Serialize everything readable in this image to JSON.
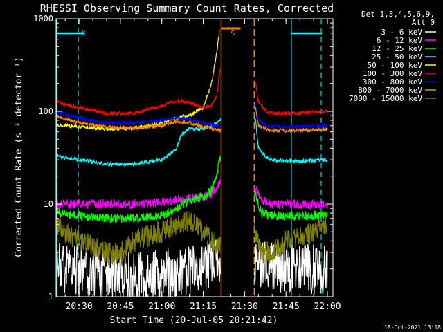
{
  "chart_data": {
    "type": "line",
    "title": "RHESSI Observing Summary Count Rates, Corrected",
    "xlabel": "Start Time (20-Jul-05 20:21:42)",
    "ylabel": "Corrected Count Rate (s⁻¹ detector⁻¹)",
    "y_scale": "log",
    "ylim": [
      1,
      1000
    ],
    "y_ticks": [
      "1",
      "10",
      "100",
      "1000"
    ],
    "xlim": [
      "20:21:42",
      "22:02:00"
    ],
    "x_ticks": [
      "20:30",
      "20:45",
      "21:00",
      "21:15",
      "21:30",
      "21:45",
      "22:00"
    ],
    "legend_header": [
      "Det 1,3,4,5,6,9,",
      "Att 0"
    ],
    "legend_position": "top-right, outside plot",
    "footer_timestamp": "18-Oct-2021 13:18",
    "markers": [
      {
        "label": "N",
        "time": "20:29:45",
        "color": "#00ffff",
        "style": "dashed"
      },
      {
        "label": "S",
        "time": "21:24:00",
        "color": "#ff8800",
        "style": "solid"
      }
    ],
    "data_gaps": [
      {
        "from": "21:21:30",
        "to": "21:33:30"
      }
    ],
    "series": [
      {
        "name": "3 - 6 keV",
        "color": "#ffffff",
        "x": [
          "20:22",
          "20:30",
          "20:40",
          "20:50",
          "21:00",
          "21:10",
          "21:15",
          "21:20",
          "21:34",
          "21:40",
          "21:50",
          "22:00"
        ],
        "y": [
          2,
          2,
          1.8,
          1.6,
          1.7,
          1.9,
          2,
          2.5,
          2.5,
          2,
          2,
          2
        ]
      },
      {
        "name": "6 - 12 keV",
        "color": "#ff00ff",
        "x": [
          "20:22",
          "20:30",
          "20:40",
          "20:50",
          "21:00",
          "21:05",
          "21:10",
          "21:15",
          "21:18",
          "21:20",
          "21:21",
          "21:34",
          "21:36",
          "21:40",
          "21:50",
          "22:00"
        ],
        "y": [
          10,
          10,
          10,
          10,
          10.5,
          11,
          11.5,
          12,
          13,
          15,
          18,
          15,
          11,
          10,
          10,
          10
        ]
      },
      {
        "name": "12 - 25 keV",
        "color": "#00ff00",
        "x": [
          "20:22",
          "20:30",
          "20:40",
          "20:50",
          "21:00",
          "21:05",
          "21:10",
          "21:15",
          "21:18",
          "21:20",
          "21:21",
          "21:34",
          "21:36",
          "21:40",
          "21:50",
          "22:00"
        ],
        "y": [
          8,
          7.5,
          7,
          7,
          7.5,
          9,
          11,
          12,
          14,
          20,
          32,
          13,
          8,
          7.5,
          7.5,
          7.5
        ]
      },
      {
        "name": "25 - 50 keV",
        "color": "#00ffff",
        "x": [
          "20:22",
          "20:30",
          "20:40",
          "20:50",
          "21:00",
          "21:05",
          "21:07",
          "21:10",
          "21:15",
          "21:18",
          "21:20",
          "21:21",
          "21:34",
          "21:35",
          "21:38",
          "21:40",
          "21:50",
          "22:00"
        ],
        "y": [
          33,
          30,
          27,
          27,
          30,
          38,
          55,
          65,
          65,
          70,
          75,
          80,
          80,
          40,
          32,
          30,
          29,
          30
        ]
      },
      {
        "name": "50 - 100 keV",
        "color": "#ffff00",
        "x": [
          "20:22",
          "20:30",
          "20:40",
          "20:50",
          "21:00",
          "21:05",
          "21:10",
          "21:15",
          "21:18",
          "21:20",
          "21:21"
        ],
        "y": [
          72,
          68,
          65,
          66,
          75,
          85,
          90,
          110,
          200,
          450,
          800
        ]
      },
      {
        "name": "100 - 300 keV",
        "color": "#ff0000",
        "x": [
          "20:22",
          "20:30",
          "20:40",
          "20:50",
          "21:00",
          "21:05",
          "21:10",
          "21:15",
          "21:18",
          "21:20",
          "21:21",
          "21:34",
          "21:35",
          "21:38",
          "21:40",
          "21:50",
          "22:00"
        ],
        "y": [
          125,
          110,
          95,
          95,
          115,
          130,
          125,
          110,
          115,
          150,
          280,
          200,
          125,
          100,
          95,
          95,
          100
        ]
      },
      {
        "name": "300 - 800 keV",
        "color": "#0000ff",
        "x": [
          "20:22",
          "20:30",
          "20:40",
          "20:50",
          "21:00",
          "21:05",
          "21:10",
          "21:15",
          "21:18",
          "21:21",
          "21:34",
          "21:35",
          "21:38",
          "21:40",
          "21:50",
          "22:00"
        ],
        "y": [
          98,
          85,
          75,
          75,
          80,
          85,
          83,
          75,
          72,
          70,
          120,
          80,
          70,
          68,
          68,
          70
        ]
      },
      {
        "name": "800 - 7000 keV",
        "color": "#ff8800",
        "x": [
          "20:22",
          "20:30",
          "20:40",
          "20:50",
          "21:00",
          "21:05",
          "21:10",
          "21:15",
          "21:18",
          "21:21",
          "21:34",
          "21:35",
          "21:38",
          "21:40",
          "21:50",
          "22:00"
        ],
        "y": [
          88,
          75,
          68,
          66,
          70,
          78,
          76,
          68,
          65,
          62,
          110,
          70,
          64,
          62,
          62,
          64
        ]
      },
      {
        "name": "7000 - 15000 keV",
        "color": "#808000",
        "x": [
          "20:22",
          "20:25",
          "20:30",
          "20:35",
          "20:40",
          "20:45",
          "20:50",
          "20:55",
          "21:00",
          "21:05",
          "21:10",
          "21:15",
          "21:18",
          "21:21",
          "21:34",
          "21:36",
          "21:40",
          "21:45",
          "21:50",
          "21:55",
          "22:00"
        ],
        "y": [
          6,
          5,
          4,
          3.5,
          3,
          3,
          4,
          4.5,
          5,
          6,
          6.5,
          5,
          4,
          3.5,
          5,
          3,
          3,
          4,
          4.5,
          5,
          6
        ]
      }
    ]
  }
}
